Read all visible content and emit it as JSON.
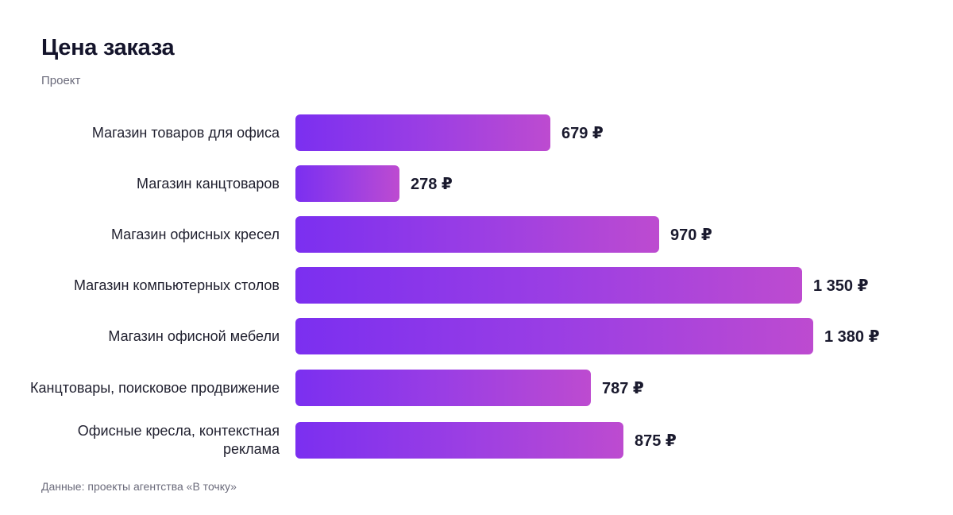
{
  "title": "Цена заказа",
  "subtitle": "Проект",
  "source": "Данные: проекты агентства «В точку»",
  "currency": "₽",
  "colors": {
    "bar_start": "#7b2ff0",
    "bar_end": "#bd4bd0"
  },
  "chart_data": {
    "type": "bar",
    "orientation": "horizontal",
    "categories": [
      "Магазин товаров для офиса",
      "Магазин канцтоваров",
      "Магазин офисных кресел",
      "Магазин компьютерных столов",
      "Магазин офисной мебели",
      "Канцтовары, поисковое продвижение",
      "Офисные кресла, контекстная реклама"
    ],
    "values": [
      679,
      278,
      970,
      1350,
      1380,
      787,
      875
    ],
    "value_labels": [
      "679 ₽",
      "278 ₽",
      "970 ₽",
      "1 350 ₽",
      "1 380 ₽",
      "787 ₽",
      "875 ₽"
    ],
    "title": "Цена заказа",
    "subtitle": "Проект",
    "xlabel": "",
    "ylabel": "",
    "grid": false,
    "legend": "none"
  }
}
